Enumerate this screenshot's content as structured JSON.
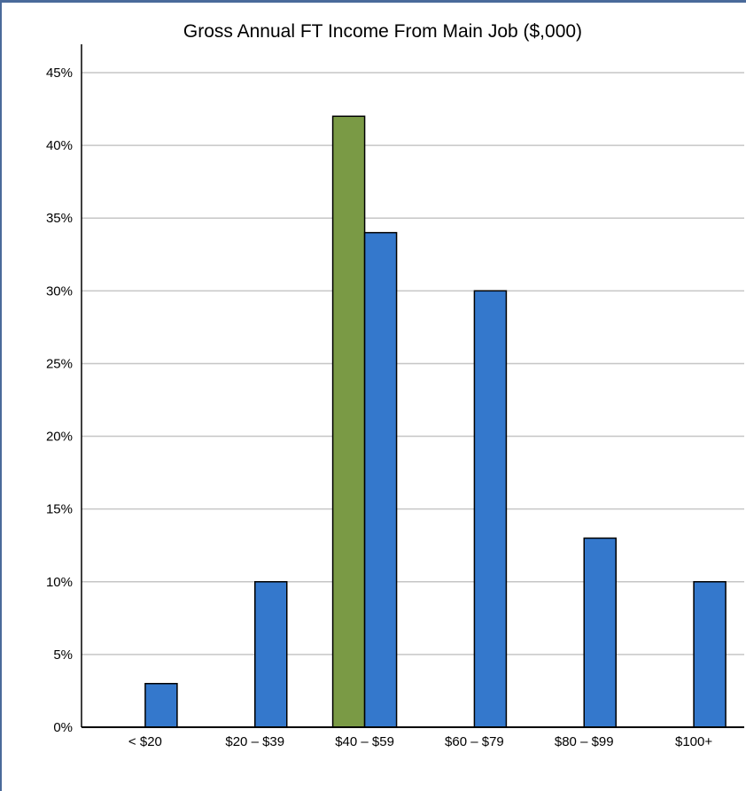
{
  "chart_data": {
    "type": "bar",
    "title": "Gross Annual FT Income From Main Job ($,000)",
    "categories": [
      "< $20",
      "$20 – $39",
      "$40 – $59",
      "$60 – $79",
      "$80 – $99",
      "$100+"
    ],
    "series": [
      {
        "color": "#7a9a45",
        "values": [
          0,
          0,
          42,
          0,
          0,
          0
        ]
      },
      {
        "color": "#3478cc",
        "values": [
          3,
          10,
          34,
          30,
          13,
          10
        ]
      }
    ],
    "ylim": [
      0,
      45
    ],
    "yticks": [
      0,
      5,
      10,
      15,
      20,
      25,
      30,
      35,
      40,
      45
    ],
    "ytick_labels": [
      "0%",
      "5%",
      "10%",
      "15%",
      "20%",
      "25%",
      "30%",
      "35%",
      "40%",
      "45%"
    ],
    "grid": true,
    "xlabel": "",
    "ylabel": ""
  }
}
